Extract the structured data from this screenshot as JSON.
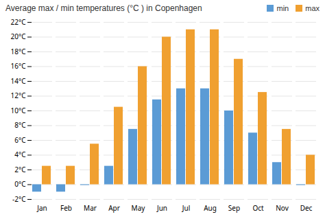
{
  "chart_data": {
    "type": "bar",
    "title": "Average max / min temperatures (°C ) in Copenhagen",
    "categories": [
      "Jan",
      "Feb",
      "Mar",
      "Apr",
      "May",
      "Jun",
      "Jul",
      "Aug",
      "Sep",
      "Oct",
      "Nov",
      "Dec"
    ],
    "series": [
      {
        "name": "min",
        "color": "#5b9bd5",
        "values": [
          -1,
          -1,
          -0.1,
          2.5,
          7.5,
          11.5,
          13,
          13,
          10,
          7,
          3,
          -0.1
        ]
      },
      {
        "name": "max",
        "color": "#f0a030",
        "values": [
          2.5,
          2.5,
          5.5,
          10.5,
          16,
          20,
          21,
          21,
          17,
          12.5,
          7.5,
          4
        ]
      }
    ],
    "ylim": [
      -2,
      22
    ],
    "yticks": [
      {
        "value": -2,
        "label": "-2°C"
      },
      {
        "value": 0,
        "label": "0°C"
      },
      {
        "value": 2,
        "label": "2°C"
      },
      {
        "value": 4,
        "label": "4°C"
      },
      {
        "value": 6,
        "label": "6°C"
      },
      {
        "value": 8,
        "label": "8°C"
      },
      {
        "value": 10,
        "label": "10°C"
      },
      {
        "value": 12,
        "label": "12°C"
      },
      {
        "value": 14,
        "label": "14°C"
      },
      {
        "value": 16,
        "label": "16°C"
      },
      {
        "value": 18,
        "label": "18°C"
      },
      {
        "value": 20,
        "label": "20°C"
      },
      {
        "value": 22,
        "label": "22°C"
      }
    ],
    "grid": true,
    "legend": "upper right"
  }
}
